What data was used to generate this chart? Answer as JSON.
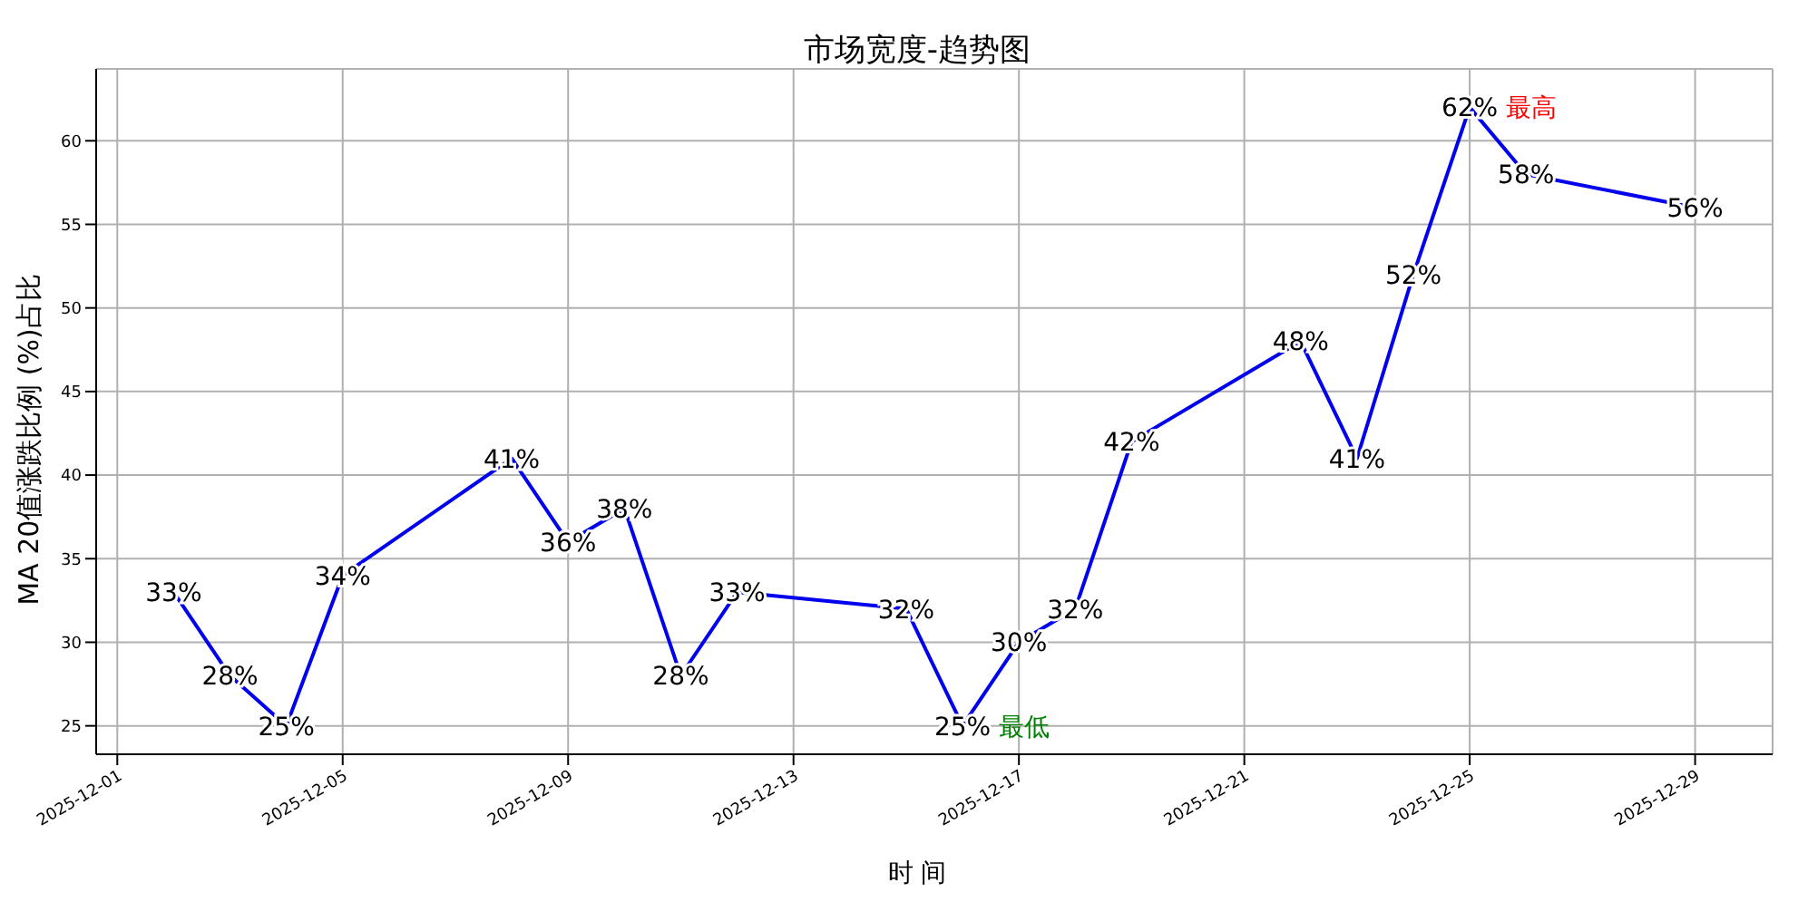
{
  "chart_data": {
    "type": "line",
    "title": "市场宽度-趋势图",
    "xlabel": "时 间",
    "ylabel": "MA 20值涨跌比例 (%)占比",
    "x": [
      "2025-12-02",
      "2025-12-03",
      "2025-12-04",
      "2025-12-05",
      "2025-12-08",
      "2025-12-09",
      "2025-12-10",
      "2025-12-11",
      "2025-12-12",
      "2025-12-15",
      "2025-12-16",
      "2025-12-17",
      "2025-12-18",
      "2025-12-19",
      "2025-12-22",
      "2025-12-23",
      "2025-12-24",
      "2025-12-25",
      "2025-12-26",
      "2025-12-29"
    ],
    "series": [
      {
        "color": "#0000ee",
        "values": [
          33,
          28,
          25,
          34,
          41,
          36,
          38,
          28,
          33,
          32,
          25,
          30,
          32,
          42,
          48,
          41,
          52,
          62,
          58,
          56
        ],
        "value_labels": [
          "33%",
          "28%",
          "25%",
          "34%",
          "41%",
          "36%",
          "38%",
          "28%",
          "33%",
          "32%",
          "25%",
          "30%",
          "32%",
          "42%",
          "48%",
          "41%",
          "52%",
          "62%",
          "58%",
          "56%"
        ]
      }
    ],
    "annotations": [
      {
        "text": "最高",
        "x": "2025-12-25",
        "y": 62
      },
      {
        "text": "最低",
        "x": "2025-12-16",
        "y": 25
      }
    ],
    "xlim": [
      "2025-11-30T15:00",
      "2025-12-30T09:00"
    ],
    "xticks": [
      "2025-12-01",
      "2025-12-05",
      "2025-12-09",
      "2025-12-13",
      "2025-12-17",
      "2025-12-21",
      "2025-12-25",
      "2025-12-29"
    ],
    "ylim": [
      23.3,
      64.3
    ],
    "yticks": [
      25,
      30,
      35,
      40,
      45,
      50,
      55,
      60
    ],
    "grid": true,
    "marker": "none",
    "line_style": "solid",
    "legend": false
  }
}
